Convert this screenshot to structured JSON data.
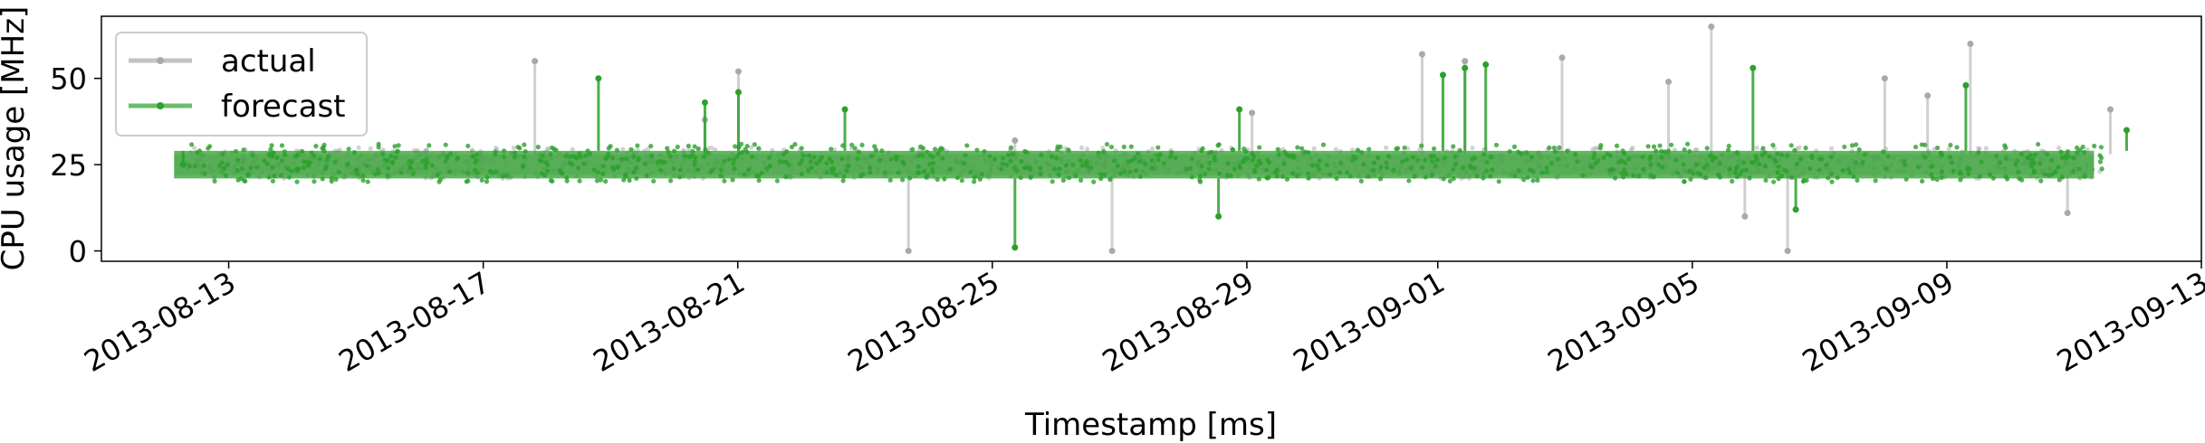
{
  "chart_data": {
    "type": "line",
    "xlabel": "Timestamp [ms]",
    "ylabel": "CPU usage [MHz]",
    "x_range": [
      "2013-08-11",
      "2013-09-13"
    ],
    "ylim": [
      -3,
      68
    ],
    "x_ticks": [
      "2013-08-13",
      "2013-08-17",
      "2013-08-21",
      "2013-08-25",
      "2013-08-29",
      "2013-09-01",
      "2013-09-05",
      "2013-09-09",
      "2013-09-13"
    ],
    "y_ticks": [
      0,
      25,
      50
    ],
    "grid": false,
    "legend_position": "top-left",
    "series": [
      {
        "name": "actual",
        "color": "#a9a9a9",
        "band": [
          22,
          28
        ],
        "x": [
          "2013-08-12",
          "2013-08-17",
          "2013-08-20",
          "2013-08-20",
          "2013-08-23",
          "2013-08-25",
          "2013-08-26",
          "2013-08-27",
          "2013-08-28",
          "2013-08-31",
          "2013-09-01",
          "2013-09-02",
          "2013-09-04",
          "2013-09-05",
          "2013-09-05",
          "2013-09-06",
          "2013-09-07",
          "2013-09-08",
          "2013-09-09",
          "2013-09-10",
          "2013-09-11"
        ],
        "values": [
          25,
          55,
          38,
          52,
          0,
          32,
          0,
          24,
          40,
          57,
          55,
          56,
          49,
          65,
          10,
          0,
          50,
          45,
          60,
          11,
          41
        ]
      },
      {
        "name": "forecast",
        "color": "#2ca02c",
        "band": [
          21,
          29
        ],
        "x": [
          "2013-08-12",
          "2013-08-18",
          "2013-08-20",
          "2013-08-20",
          "2013-08-22",
          "2013-08-25",
          "2013-08-28",
          "2013-08-28",
          "2013-08-31",
          "2013-09-01",
          "2013-09-01",
          "2013-09-05",
          "2013-09-06",
          "2013-09-09",
          "2013-09-11"
        ],
        "values": [
          25,
          50,
          43,
          46,
          41,
          1,
          41,
          10,
          51,
          54,
          53,
          53,
          12,
          48,
          35
        ]
      }
    ]
  }
}
